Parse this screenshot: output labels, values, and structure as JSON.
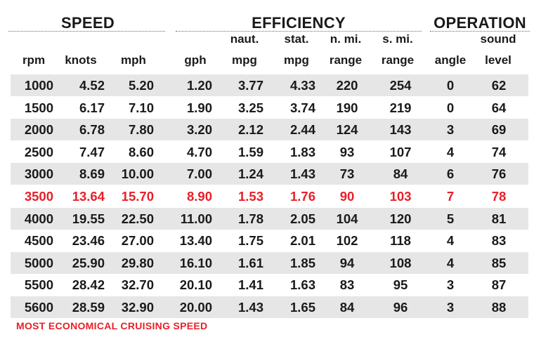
{
  "groups": {
    "speed": "SPEED",
    "efficiency": "EFFICIENCY",
    "operation": "OPERATION"
  },
  "headers": {
    "rpm": {
      "line2": "rpm"
    },
    "knots": {
      "line2": "knots"
    },
    "mph": {
      "line2": "mph"
    },
    "gph": {
      "line2": "gph"
    },
    "naut_mpg": {
      "line1": "naut.",
      "line2": "mpg"
    },
    "stat_mpg": {
      "line1": "stat.",
      "line2": "mpg"
    },
    "nmi_range": {
      "line1": "n. mi.",
      "line2": "range"
    },
    "smi_range": {
      "line1": "s. mi.",
      "line2": "range"
    },
    "angle": {
      "line2": "angle"
    },
    "sound_level": {
      "line1": "sound",
      "line2": "level"
    }
  },
  "rows": [
    [
      "1000",
      "4.52",
      "5.20",
      "1.20",
      "3.77",
      "4.33",
      "220",
      "254",
      "0",
      "62"
    ],
    [
      "1500",
      "6.17",
      "7.10",
      "1.90",
      "3.25",
      "3.74",
      "190",
      "219",
      "0",
      "64"
    ],
    [
      "2000",
      "6.78",
      "7.80",
      "3.20",
      "2.12",
      "2.44",
      "124",
      "143",
      "3",
      "69"
    ],
    [
      "2500",
      "7.47",
      "8.60",
      "4.70",
      "1.59",
      "1.83",
      "93",
      "107",
      "4",
      "74"
    ],
    [
      "3000",
      "8.69",
      "10.00",
      "7.00",
      "1.24",
      "1.43",
      "73",
      "84",
      "6",
      "76"
    ],
    [
      "3500",
      "13.64",
      "15.70",
      "8.90",
      "1.53",
      "1.76",
      "90",
      "103",
      "7",
      "78"
    ],
    [
      "4000",
      "19.55",
      "22.50",
      "11.00",
      "1.78",
      "2.05",
      "104",
      "120",
      "5",
      "81"
    ],
    [
      "4500",
      "23.46",
      "27.00",
      "13.40",
      "1.75",
      "2.01",
      "102",
      "118",
      "4",
      "83"
    ],
    [
      "5000",
      "25.90",
      "29.80",
      "16.10",
      "1.61",
      "1.85",
      "94",
      "108",
      "4",
      "85"
    ],
    [
      "5500",
      "28.42",
      "32.70",
      "20.10",
      "1.41",
      "1.63",
      "83",
      "95",
      "3",
      "87"
    ],
    [
      "5600",
      "28.59",
      "32.90",
      "20.00",
      "1.43",
      "1.65",
      "84",
      "96",
      "3",
      "88"
    ]
  ],
  "highlight_row": 5,
  "colors": {
    "highlight": "#e8202a",
    "shade": "#e6e6e6",
    "text": "#1a1a1a"
  },
  "footnote": "MOST ECONOMICAL CRUISING SPEED"
}
